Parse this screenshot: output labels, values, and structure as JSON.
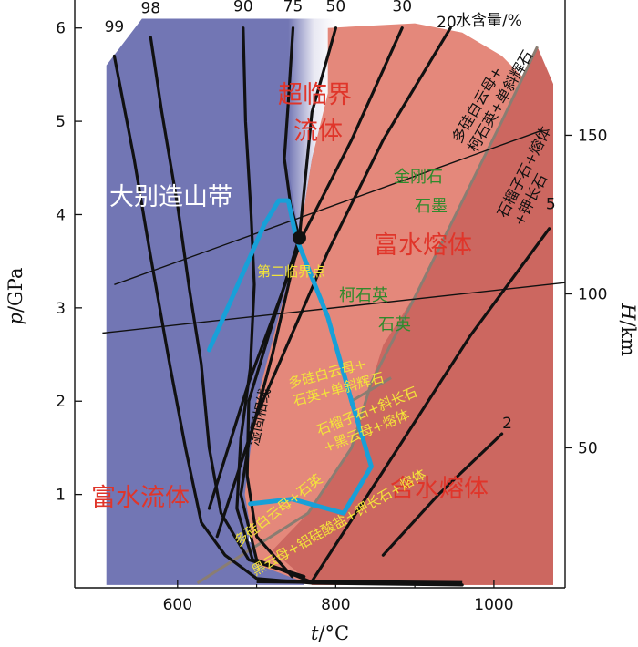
{
  "chart_data": {
    "type": "line",
    "xlabel_var": "t",
    "xlabel_unit": "/°C",
    "ylabel_var": "p",
    "ylabel_unit": "/GPa",
    "y2label_var": "H",
    "y2label_unit": "/km",
    "xlim": [
      470,
      1090
    ],
    "ylim": [
      0,
      6.3
    ],
    "x_ticks": [
      600,
      800,
      1000
    ],
    "y_ticks": [
      1,
      2,
      3,
      4,
      5,
      6
    ],
    "y2_ticks": [
      {
        "label": "50",
        "p": 1.5
      },
      {
        "label": "100",
        "p": 3.15
      },
      {
        "label": "150",
        "p": 4.85
      }
    ],
    "regions": {
      "fluid": {
        "label": "富水流体",
        "color": "#7276b4"
      },
      "supercritical": {
        "label": "超临界\n流体"
      },
      "hydrous_melt_rich": {
        "label": "富水熔体",
        "color": "#e4887b"
      },
      "hydrous_melt": {
        "label": "含水熔体",
        "color": "#cc6760"
      }
    },
    "water_content_title": "水含量/%",
    "water_content_isopleths": [
      {
        "label": "99",
        "points": [
          [
            520,
            5.7
          ],
          [
            545,
            4.6
          ],
          [
            565,
            3.6
          ],
          [
            590,
            2.4
          ],
          [
            610,
            1.5
          ],
          [
            630,
            0.7
          ],
          [
            660,
            0.35
          ],
          [
            700,
            0.1
          ],
          [
            770,
            0.05
          ],
          [
            960,
            0.03
          ]
        ]
      },
      {
        "label": "98",
        "points": [
          [
            566,
            5.9
          ],
          [
            580,
            5.1
          ],
          [
            600,
            4.1
          ],
          [
            615,
            3.2
          ],
          [
            630,
            2.4
          ],
          [
            640,
            1.5
          ],
          [
            655,
            0.8
          ],
          [
            690,
            0.3
          ],
          [
            760,
            0.12
          ]
        ]
      },
      {
        "label": "90",
        "points": [
          [
            683,
            6.0
          ],
          [
            686,
            5.0
          ],
          [
            693,
            4.0
          ],
          [
            697,
            3.25
          ],
          [
            692,
            2.35
          ],
          [
            680,
            1.6
          ],
          [
            675,
            0.85
          ],
          [
            695,
            0.3
          ],
          [
            760,
            0.12
          ]
        ]
      },
      {
        "label": "75",
        "points": [
          [
            746,
            6.0
          ],
          [
            740,
            5.2
          ],
          [
            735,
            4.6
          ],
          [
            743,
            4.1
          ],
          [
            754,
            3.75
          ],
          [
            715,
            2.7
          ],
          [
            690,
            2.0
          ],
          [
            688,
            1.2
          ],
          [
            700,
            0.55
          ],
          [
            745,
            0.12
          ]
        ]
      },
      {
        "label": "50",
        "points": [
          [
            800,
            6.0
          ],
          [
            770,
            5.1
          ],
          [
            754,
            3.75
          ],
          [
            720,
            2.5
          ],
          [
            690,
            1.55
          ],
          [
            680,
            1.0
          ],
          [
            700,
            0.3
          ],
          [
            770,
            0.06
          ]
        ]
      },
      {
        "label": "30",
        "points": [
          [
            884,
            6.0
          ],
          [
            820,
            4.8
          ],
          [
            760,
            3.8
          ],
          [
            690,
            2.2
          ],
          [
            640,
            0.85
          ]
        ]
      },
      {
        "label": "20",
        "points": [
          [
            945,
            6.0
          ],
          [
            860,
            4.8
          ],
          [
            790,
            3.6
          ],
          [
            700,
            1.85
          ],
          [
            650,
            0.55
          ]
        ]
      },
      {
        "label": "5",
        "points": [
          [
            1070,
            3.85
          ],
          [
            970,
            2.7
          ],
          [
            860,
            1.25
          ],
          [
            770,
            0.07
          ]
        ]
      },
      {
        "label": "2",
        "points": [
          [
            1010,
            1.65
          ],
          [
            930,
            1.0
          ],
          [
            860,
            0.35
          ]
        ]
      }
    ],
    "wet_solidus": {
      "label": "湿固相线",
      "points": [
        [
          1055,
          5.8
        ],
        [
          1010,
          5.0
        ],
        [
          905,
          3.2
        ],
        [
          845,
          2.2
        ],
        [
          820,
          1.5
        ],
        [
          765,
          0.8
        ],
        [
          625,
          0.05
        ]
      ]
    },
    "second_critical_point": {
      "label": "第二临界点",
      "t": 754,
      "p": 3.75
    },
    "daibie_ptpath": {
      "label": "大别造山带",
      "color": "#18a0d8",
      "points": [
        [
          640,
          2.55
        ],
        [
          710,
          3.9
        ],
        [
          728,
          4.15
        ],
        [
          740,
          4.15
        ],
        [
          750,
          3.75
        ],
        [
          790,
          2.9
        ],
        [
          820,
          2.0
        ],
        [
          845,
          1.3
        ],
        [
          810,
          0.8
        ],
        [
          745,
          0.95
        ],
        [
          692,
          0.9
        ]
      ]
    },
    "depth_lines": [
      {
        "points": [
          [
            520,
            3.25
          ],
          [
            1060,
            4.9
          ]
        ]
      },
      {
        "points": [
          [
            505,
            2.73
          ],
          [
            1090,
            3.27
          ]
        ]
      }
    ],
    "mineral_labels": {
      "diamond": "金刚石",
      "graphite": "石墨",
      "coesite": "柯石英",
      "quartz": "石英",
      "phengite_quartz_cpx": "多硅白云母+\n石英+单斜辉石",
      "grt_pl_bt_melt": "石榴子石+斜长石\n+黑云母+熔体",
      "phengite_quartz_cpx_melt": "多硅白云母+\n柯石英+单斜辉石",
      "grt_kfs_melt": "石榴子石+熔体\n+钾长石",
      "phengite_quartz": "多硅白云母+石英",
      "bt_alsilicate_kfs": "黑云母+铝硅酸盐+钾长石+熔体"
    }
  }
}
